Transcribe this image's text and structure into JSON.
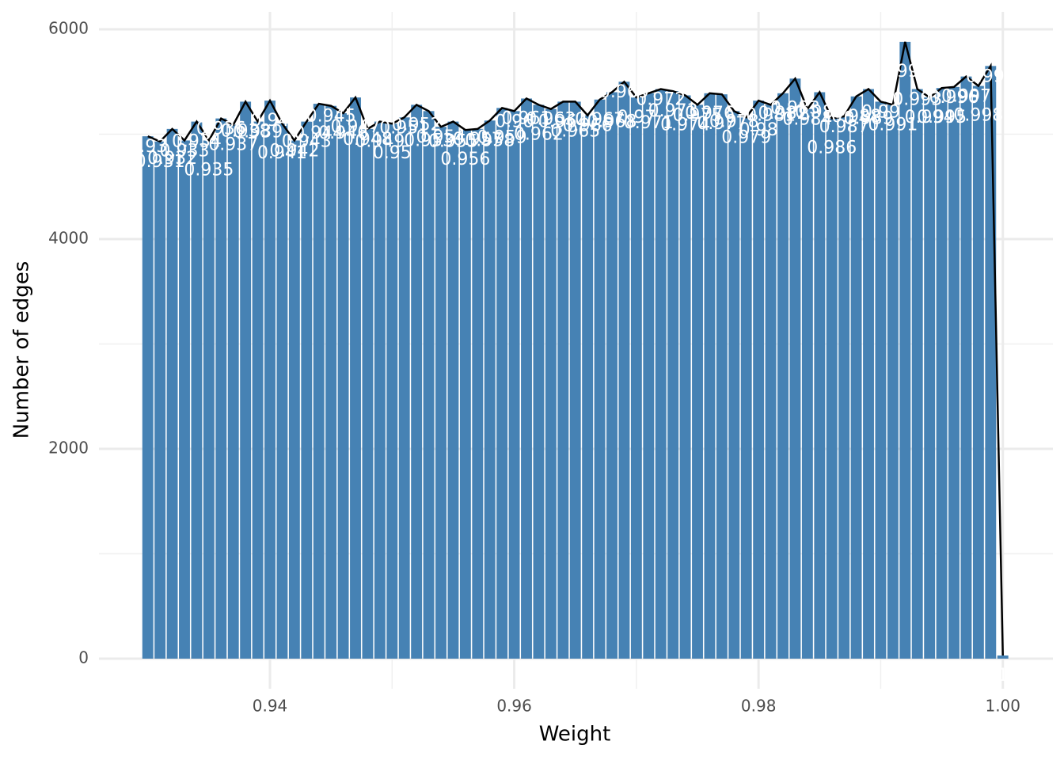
{
  "chart_data": {
    "type": "bar",
    "x_label": "Weight",
    "y_label": "Number of edges",
    "x": [
      0.93,
      0.931,
      0.932,
      0.933,
      0.934,
      0.935,
      0.936,
      0.937,
      0.938,
      0.939,
      0.94,
      0.941,
      0.942,
      0.943,
      0.944,
      0.945,
      0.946,
      0.947,
      0.948,
      0.949,
      0.95,
      0.951,
      0.952,
      0.953,
      0.954,
      0.955,
      0.956,
      0.957,
      0.958,
      0.959,
      0.96,
      0.961,
      0.962,
      0.963,
      0.964,
      0.965,
      0.966,
      0.967,
      0.968,
      0.969,
      0.97,
      0.971,
      0.972,
      0.973,
      0.974,
      0.975,
      0.976,
      0.977,
      0.978,
      0.979,
      0.98,
      0.981,
      0.982,
      0.983,
      0.984,
      0.985,
      0.986,
      0.987,
      0.988,
      0.989,
      0.99,
      0.991,
      0.992,
      0.993,
      0.994,
      0.995,
      0.996,
      0.997,
      0.998,
      0.999,
      1
    ],
    "values": [
      4980,
      4930,
      5050,
      4940,
      5120,
      4940,
      5150,
      5090,
      5310,
      5120,
      5320,
      5100,
      4940,
      5120,
      5290,
      5270,
      5200,
      5350,
      5050,
      5120,
      5100,
      5160,
      5280,
      5220,
      5070,
      5120,
      5040,
      5050,
      5130,
      5250,
      5220,
      5340,
      5280,
      5240,
      5310,
      5310,
      5180,
      5330,
      5400,
      5500,
      5350,
      5390,
      5430,
      5410,
      5370,
      5280,
      5390,
      5380,
      5220,
      5160,
      5320,
      5280,
      5390,
      5530,
      5240,
      5400,
      5150,
      5170,
      5360,
      5430,
      5310,
      5280,
      5880,
      5430,
      5350,
      5440,
      5450,
      5550,
      5460,
      5650,
      30
    ],
    "color": "#4682b4",
    "line_color": "#000000",
    "xlim": [
      0.926,
      1.0041
    ],
    "ylim": [
      -287,
      6166
    ],
    "xticks": [
      0.94,
      0.96,
      0.98,
      {
        "value": 1,
        "label": "1.00"
      }
    ],
    "yticks": [
      0,
      2000,
      4000,
      6000
    ],
    "grid": true
  }
}
